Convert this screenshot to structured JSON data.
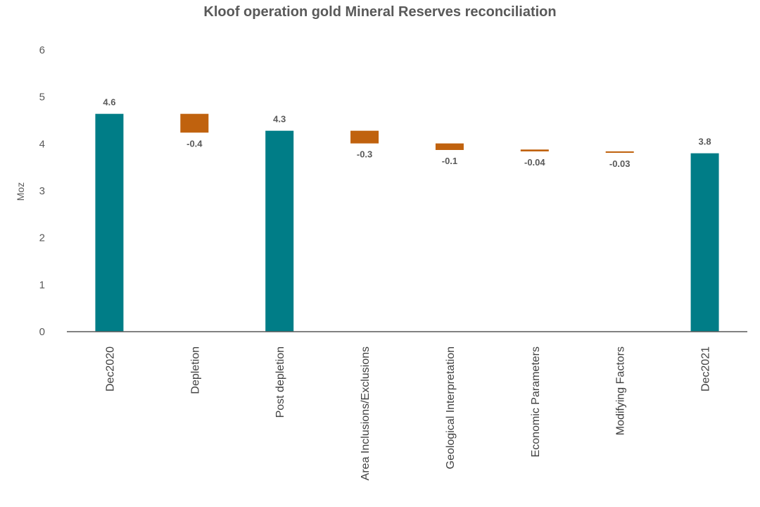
{
  "chart_data": {
    "type": "bar",
    "subtype": "waterfall",
    "title": "Kloof operation gold Mineral Reserves reconciliation",
    "xlabel": "",
    "ylabel": "Moz",
    "ylim": [
      0,
      6
    ],
    "yticks": [
      "0",
      "1",
      "2",
      "3",
      "4",
      "5",
      "6"
    ],
    "grid": false,
    "categories": [
      "Dec2020",
      "Depletion",
      "Post depletion",
      "Area Inclusions/Exclusions",
      "Geological Interpretation",
      "Economic Parameters",
      "Modifying Factors",
      "Dec2021"
    ],
    "bars": [
      {
        "kind": "total",
        "base": 0,
        "value": 4.64,
        "label": "4.6"
      },
      {
        "kind": "change",
        "base": 4.64,
        "value": -0.4,
        "label": "-0.4"
      },
      {
        "kind": "total",
        "base": 0,
        "value": 4.28,
        "label": "4.3"
      },
      {
        "kind": "change",
        "base": 4.28,
        "value": -0.27,
        "label": "-0.3"
      },
      {
        "kind": "change",
        "base": 4.01,
        "value": -0.14,
        "label": "-0.1"
      },
      {
        "kind": "change",
        "base": 3.88,
        "value": -0.04,
        "label": "-0.04"
      },
      {
        "kind": "change",
        "base": 3.84,
        "value": -0.03,
        "label": "-0.03"
      },
      {
        "kind": "total",
        "base": 0,
        "value": 3.8,
        "label": "3.8"
      }
    ],
    "colors": {
      "total": "#007D87",
      "change": "#C0620E",
      "axis": "#595959"
    }
  }
}
